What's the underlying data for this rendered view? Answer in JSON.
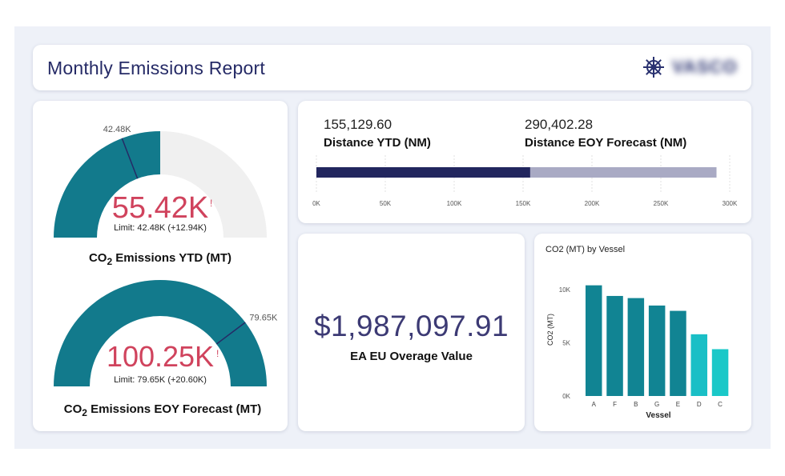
{
  "header": {
    "title": "Monthly Emissions Report",
    "logo_text": "VASCO",
    "logo_icon": "ship-wheel-icon"
  },
  "gauge_ytd": {
    "value_label": "55.42K",
    "alert_mark": "!",
    "target_label": "42.48K",
    "limit_text": "Limit: 42.48K (+12.94K)",
    "title_prefix": "CO",
    "title_sub": "2",
    "title_suffix": " Emissions YTD (MT)",
    "value": 55420,
    "target": 42480,
    "max": 110840,
    "fill_color": "#127a8c",
    "track_color": "#f0f0f0",
    "value_color": "#d0435d"
  },
  "gauge_eoy": {
    "value_label": "100.25K",
    "alert_mark": "!",
    "target_label": "79.65K",
    "limit_text": "Limit: 79.65K (+20.60K)",
    "title_prefix": "CO",
    "title_sub": "2",
    "title_suffix": " Emissions EOY Forecast (MT)",
    "value": 100250,
    "target": 79650,
    "max": 100250,
    "fill_color": "#127a8c",
    "track_color": "#f0f0f0",
    "value_color": "#d0435d"
  },
  "distance": {
    "ytd_value": "155,129.60",
    "ytd_label": "Distance YTD (NM)",
    "eoy_value": "290,402.28",
    "eoy_label": "Distance EOY Forecast (NM)",
    "ytd": 155129.6,
    "eoy": 290402.28,
    "axis_max": 300000,
    "ticks": [
      "0K",
      "50K",
      "100K",
      "150K",
      "200K",
      "250K",
      "300K"
    ],
    "ytd_color": "#22265e",
    "eoy_color": "#a9aac4"
  },
  "overage": {
    "value": "$1,987,097.91",
    "label": "EA EU Overage Value"
  },
  "chart_data": {
    "type": "bar",
    "title": "CO2 (MT) by Vessel",
    "xlabel": "Vessel",
    "ylabel": "CO2 (MT)",
    "categories": [
      "A",
      "F",
      "B",
      "G",
      "E",
      "D",
      "C"
    ],
    "values": [
      10400,
      9400,
      9200,
      8500,
      8000,
      5800,
      4400
    ],
    "ylim": [
      0,
      11500
    ],
    "yticks": [
      {
        "value": 0,
        "label": "0K"
      },
      {
        "value": 5000,
        "label": "5K"
      },
      {
        "value": 10000,
        "label": "10K"
      }
    ],
    "colors": [
      "#118493",
      "#118493",
      "#118493",
      "#118493",
      "#118493",
      "#1abfc6",
      "#1ac8c8"
    ],
    "grid": false,
    "legend": "none"
  }
}
